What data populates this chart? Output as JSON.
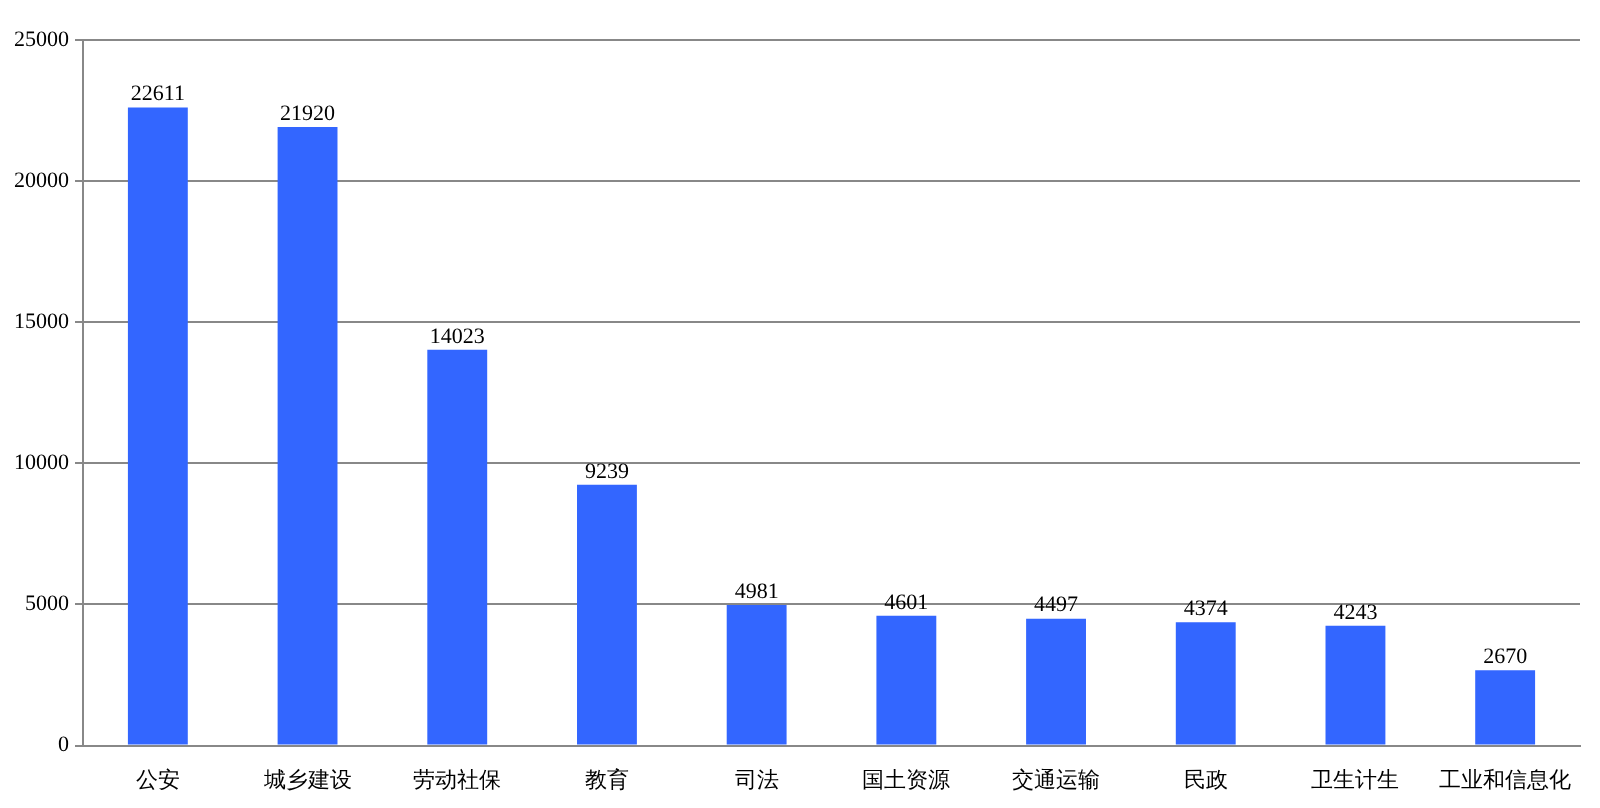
{
  "chart_data": {
    "type": "bar",
    "categories": [
      "公安",
      "城乡建设",
      "劳动社保",
      "教育",
      "司法",
      "国土资源",
      "交通运输",
      "民政",
      "卫生计生",
      "工业和信息化"
    ],
    "values": [
      22611,
      21920,
      14023,
      9239,
      4981,
      4601,
      4497,
      4374,
      4243,
      2670
    ],
    "color": "#3366ff",
    "ylim": [
      0,
      25000
    ],
    "yticks": [
      0,
      5000,
      10000,
      15000,
      20000,
      25000
    ],
    "grid": "y",
    "data_labels": true
  }
}
